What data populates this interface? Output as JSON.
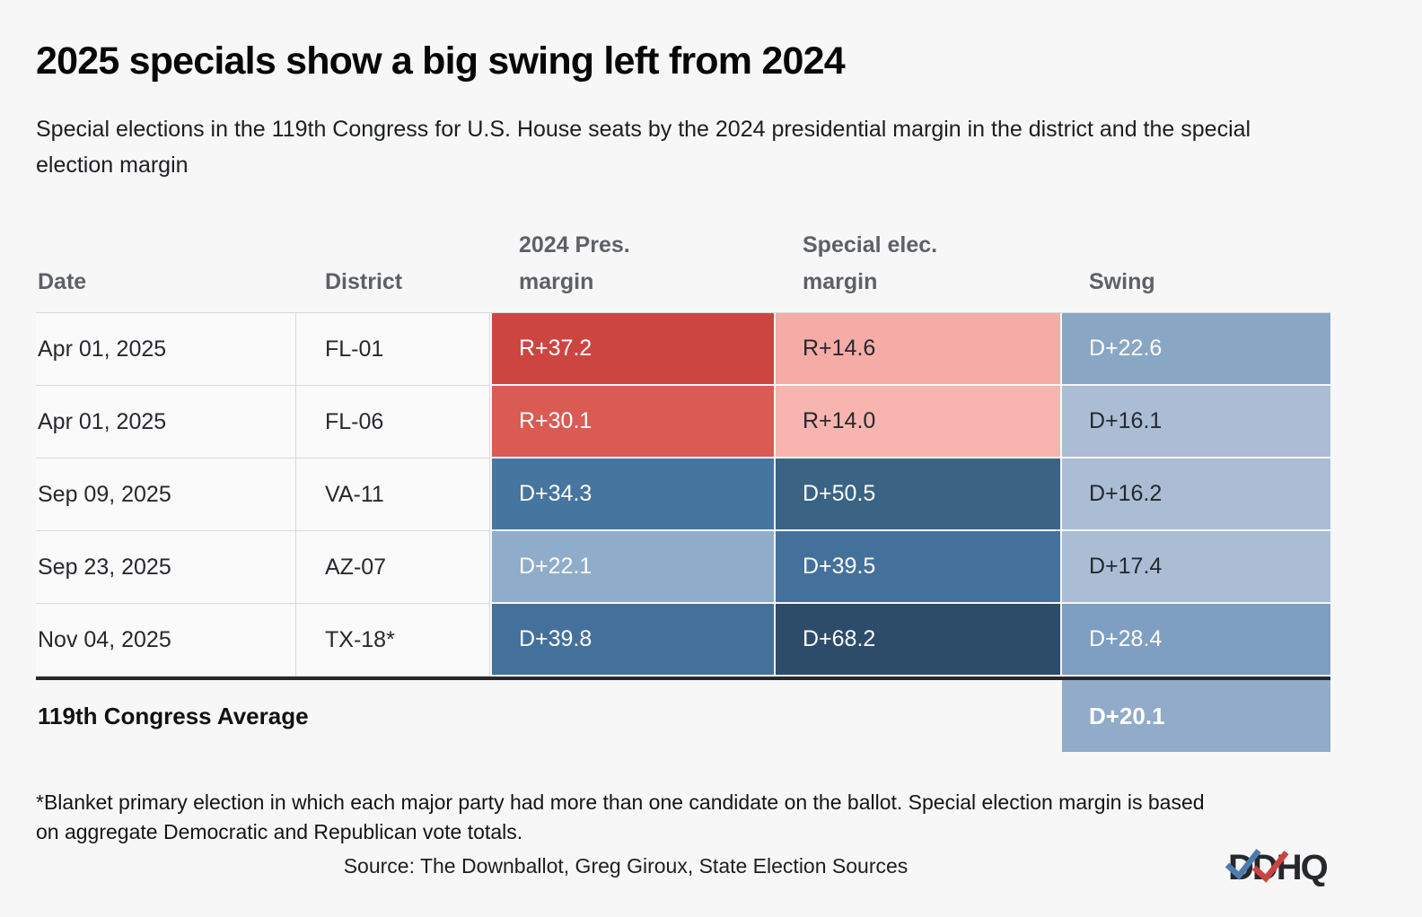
{
  "title": "2025 specials show a big swing left from 2024",
  "subtitle": "Special elections in the 119th Congress for U.S. House seats by the 2024 presidential margin in the district and the special election margin",
  "accent_colors": {
    "rep_strong": "#cd4541",
    "rep_medium": "#da5b53",
    "rep_light": "#f5aca7",
    "dem_strong": "#2c4c6a",
    "dem_medium": "#46759f",
    "dem_light": "#aabdd5"
  },
  "table": {
    "columns": [
      "Date",
      "District",
      "2024 Pres. margin",
      "Special elec. margin",
      "Swing"
    ],
    "rows": [
      {
        "date": "Apr 01, 2025",
        "district": "FL-01",
        "pres": {
          "text": "R+37.2",
          "bg": "#cd4541",
          "color": "#ffffff"
        },
        "special": {
          "text": "R+14.6",
          "bg": "#f5aca7",
          "color": "#26282e"
        },
        "swing": {
          "text": "D+22.6",
          "bg": "#8aa6c5",
          "color": "#ffffff"
        }
      },
      {
        "date": "Apr 01, 2025",
        "district": "FL-06",
        "pres": {
          "text": "R+30.1",
          "bg": "#da5b53",
          "color": "#ffffff"
        },
        "special": {
          "text": "R+14.0",
          "bg": "#f8b5af",
          "color": "#26282e"
        },
        "swing": {
          "text": "D+16.1",
          "bg": "#aabdd5",
          "color": "#26282e"
        }
      },
      {
        "date": "Sep 09, 2025",
        "district": "VA-11",
        "pres": {
          "text": "D+34.3",
          "bg": "#46759f",
          "color": "#ffffff"
        },
        "special": {
          "text": "D+50.5",
          "bg": "#3a6384",
          "color": "#ffffff"
        },
        "swing": {
          "text": "D+16.2",
          "bg": "#aabdd5",
          "color": "#26282e"
        }
      },
      {
        "date": "Sep 23, 2025",
        "district": "AZ-07",
        "pres": {
          "text": "D+22.1",
          "bg": "#8fadcb",
          "color": "#ffffff"
        },
        "special": {
          "text": "D+39.5",
          "bg": "#44719b",
          "color": "#ffffff"
        },
        "swing": {
          "text": "D+17.4",
          "bg": "#aabdd5",
          "color": "#26282e"
        }
      },
      {
        "date": "Nov 04, 2025",
        "district": "TX-18*",
        "pres": {
          "text": "D+39.8",
          "bg": "#44719b",
          "color": "#ffffff"
        },
        "special": {
          "text": "D+68.2",
          "bg": "#2c4c6a",
          "color": "#ffffff"
        },
        "swing": {
          "text": "D+28.4",
          "bg": "#7e9ec2",
          "color": "#ffffff"
        }
      }
    ],
    "average": {
      "label": "119th Congress Average",
      "swing": "D+20.1",
      "swing_bg": "#91abc8",
      "swing_color": "#ffffff"
    }
  },
  "footnote": "*Blanket primary election in which each major party had more than one candidate on the ballot. Special election margin is based on aggregate Democratic and Republican vote totals.",
  "source": "Source: The Downballot, Greg Giroux, State Election Sources",
  "logo_text": "DDHQ",
  "chart_data": {
    "type": "table",
    "title": "2025 specials show a big swing left from 2024",
    "subtitle": "Special elections in the 119th Congress for U.S. House seats by the 2024 presidential margin in the district and the special election margin",
    "columns": [
      "Date",
      "District",
      "2024 Pres. margin",
      "Special elec. margin",
      "Swing"
    ],
    "rows": [
      [
        "Apr 01, 2025",
        "FL-01",
        "R+37.2",
        "R+14.6",
        "D+22.6"
      ],
      [
        "Apr 01, 2025",
        "FL-06",
        "R+30.1",
        "R+14.0",
        "D+16.1"
      ],
      [
        "Sep 09, 2025",
        "VA-11",
        "D+34.3",
        "D+50.5",
        "D+16.2"
      ],
      [
        "Sep 23, 2025",
        "AZ-07",
        "D+22.1",
        "D+39.5",
        "D+17.4"
      ],
      [
        "Nov 04, 2025",
        "TX-18*",
        "D+39.8",
        "D+68.2",
        "D+28.4"
      ]
    ],
    "average_row": [
      "119th Congress Average",
      "",
      "",
      "",
      "D+20.1"
    ],
    "color_encoding": "cell fill encodes party and magnitude of margin: red = Republican, blue = Democratic; darker = larger margin"
  }
}
